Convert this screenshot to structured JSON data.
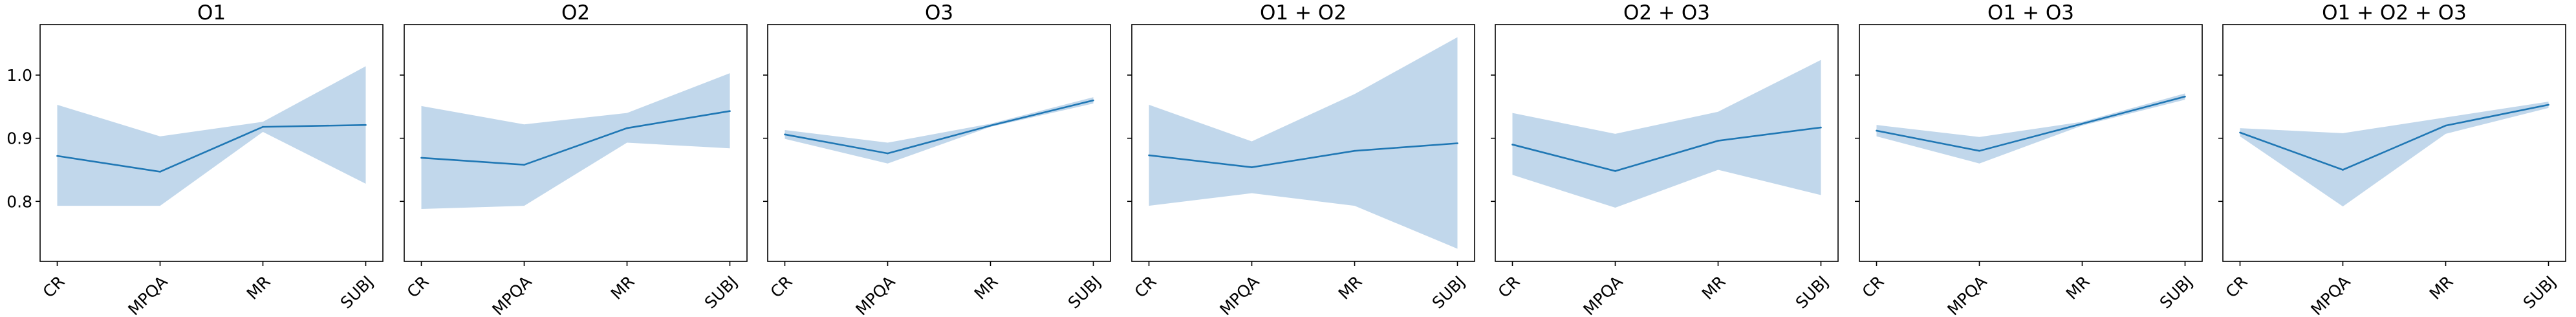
{
  "chart_data": [
    {
      "type": "line",
      "title": "O1",
      "categories": [
        "CR",
        "MPQA",
        "MR",
        "SUBJ"
      ],
      "values": [
        0.872,
        0.847,
        0.918,
        0.921
      ],
      "lower": [
        0.793,
        0.793,
        0.91,
        0.828
      ],
      "upper": [
        0.953,
        0.903,
        0.926,
        1.014
      ],
      "ylim": [
        0.705,
        1.08
      ],
      "yticks": [
        0.8,
        0.9,
        1.0
      ],
      "ytick_labels": [
        "0.8",
        "0.9",
        "1.0"
      ],
      "show_ytick_labels": true,
      "grid": false
    },
    {
      "type": "line",
      "title": "O2",
      "categories": [
        "CR",
        "MPQA",
        "MR",
        "SUBJ"
      ],
      "values": [
        0.869,
        0.858,
        0.916,
        0.943
      ],
      "lower": [
        0.788,
        0.793,
        0.893,
        0.884
      ],
      "upper": [
        0.951,
        0.922,
        0.94,
        1.003
      ],
      "ylim": [
        0.705,
        1.08
      ],
      "yticks": [
        0.8,
        0.9,
        1.0
      ],
      "ytick_labels": [
        "0.8",
        "0.9",
        "1.0"
      ],
      "show_ytick_labels": false,
      "grid": false
    },
    {
      "type": "line",
      "title": "O3",
      "categories": [
        "CR",
        "MPQA",
        "MR",
        "SUBJ"
      ],
      "values": [
        0.906,
        0.876,
        0.92,
        0.96
      ],
      "lower": [
        0.899,
        0.86,
        0.918,
        0.955
      ],
      "upper": [
        0.913,
        0.893,
        0.923,
        0.965
      ],
      "ylim": [
        0.705,
        1.08
      ],
      "yticks": [
        0.8,
        0.9,
        1.0
      ],
      "ytick_labels": [
        "0.8",
        "0.9",
        "1.0"
      ],
      "show_ytick_labels": false,
      "grid": false
    },
    {
      "type": "line",
      "title": "O1 + O2",
      "categories": [
        "CR",
        "MPQA",
        "MR",
        "SUBJ"
      ],
      "values": [
        0.873,
        0.854,
        0.88,
        0.892
      ],
      "lower": [
        0.793,
        0.813,
        0.793,
        0.725
      ],
      "upper": [
        0.953,
        0.895,
        0.97,
        1.06
      ],
      "ylim": [
        0.705,
        1.08
      ],
      "yticks": [
        0.8,
        0.9,
        1.0
      ],
      "ytick_labels": [
        "0.8",
        "0.9",
        "1.0"
      ],
      "show_ytick_labels": false,
      "grid": false
    },
    {
      "type": "line",
      "title": "O2 + O3",
      "categories": [
        "CR",
        "MPQA",
        "MR",
        "SUBJ"
      ],
      "values": [
        0.89,
        0.848,
        0.896,
        0.917
      ],
      "lower": [
        0.842,
        0.79,
        0.85,
        0.81
      ],
      "upper": [
        0.94,
        0.907,
        0.942,
        1.024
      ],
      "ylim": [
        0.705,
        1.08
      ],
      "yticks": [
        0.8,
        0.9,
        1.0
      ],
      "ytick_labels": [
        "0.8",
        "0.9",
        "1.0"
      ],
      "show_ytick_labels": false,
      "grid": false
    },
    {
      "type": "line",
      "title": "O1 + O3",
      "categories": [
        "CR",
        "MPQA",
        "MR",
        "SUBJ"
      ],
      "values": [
        0.912,
        0.88,
        0.923,
        0.966
      ],
      "lower": [
        0.903,
        0.86,
        0.92,
        0.961
      ],
      "upper": [
        0.921,
        0.902,
        0.926,
        0.971
      ],
      "ylim": [
        0.705,
        1.08
      ],
      "yticks": [
        0.8,
        0.9,
        1.0
      ],
      "ytick_labels": [
        "0.8",
        "0.9",
        "1.0"
      ],
      "show_ytick_labels": false,
      "grid": false
    },
    {
      "type": "line",
      "title": "O1 + O2 + O3",
      "categories": [
        "CR",
        "MPQA",
        "MR",
        "SUBJ"
      ],
      "values": [
        0.909,
        0.85,
        0.92,
        0.953
      ],
      "lower": [
        0.903,
        0.792,
        0.907,
        0.948
      ],
      "upper": [
        0.916,
        0.908,
        0.933,
        0.958
      ],
      "ylim": [
        0.705,
        1.08
      ],
      "yticks": [
        0.8,
        0.9,
        1.0
      ],
      "ytick_labels": [
        "0.8",
        "0.9",
        "1.0"
      ],
      "show_ytick_labels": false,
      "grid": false
    }
  ],
  "colors": {
    "line": "#1f77b4",
    "band": "#a9c8e3",
    "axes": "#000000",
    "background": "#ffffff"
  }
}
